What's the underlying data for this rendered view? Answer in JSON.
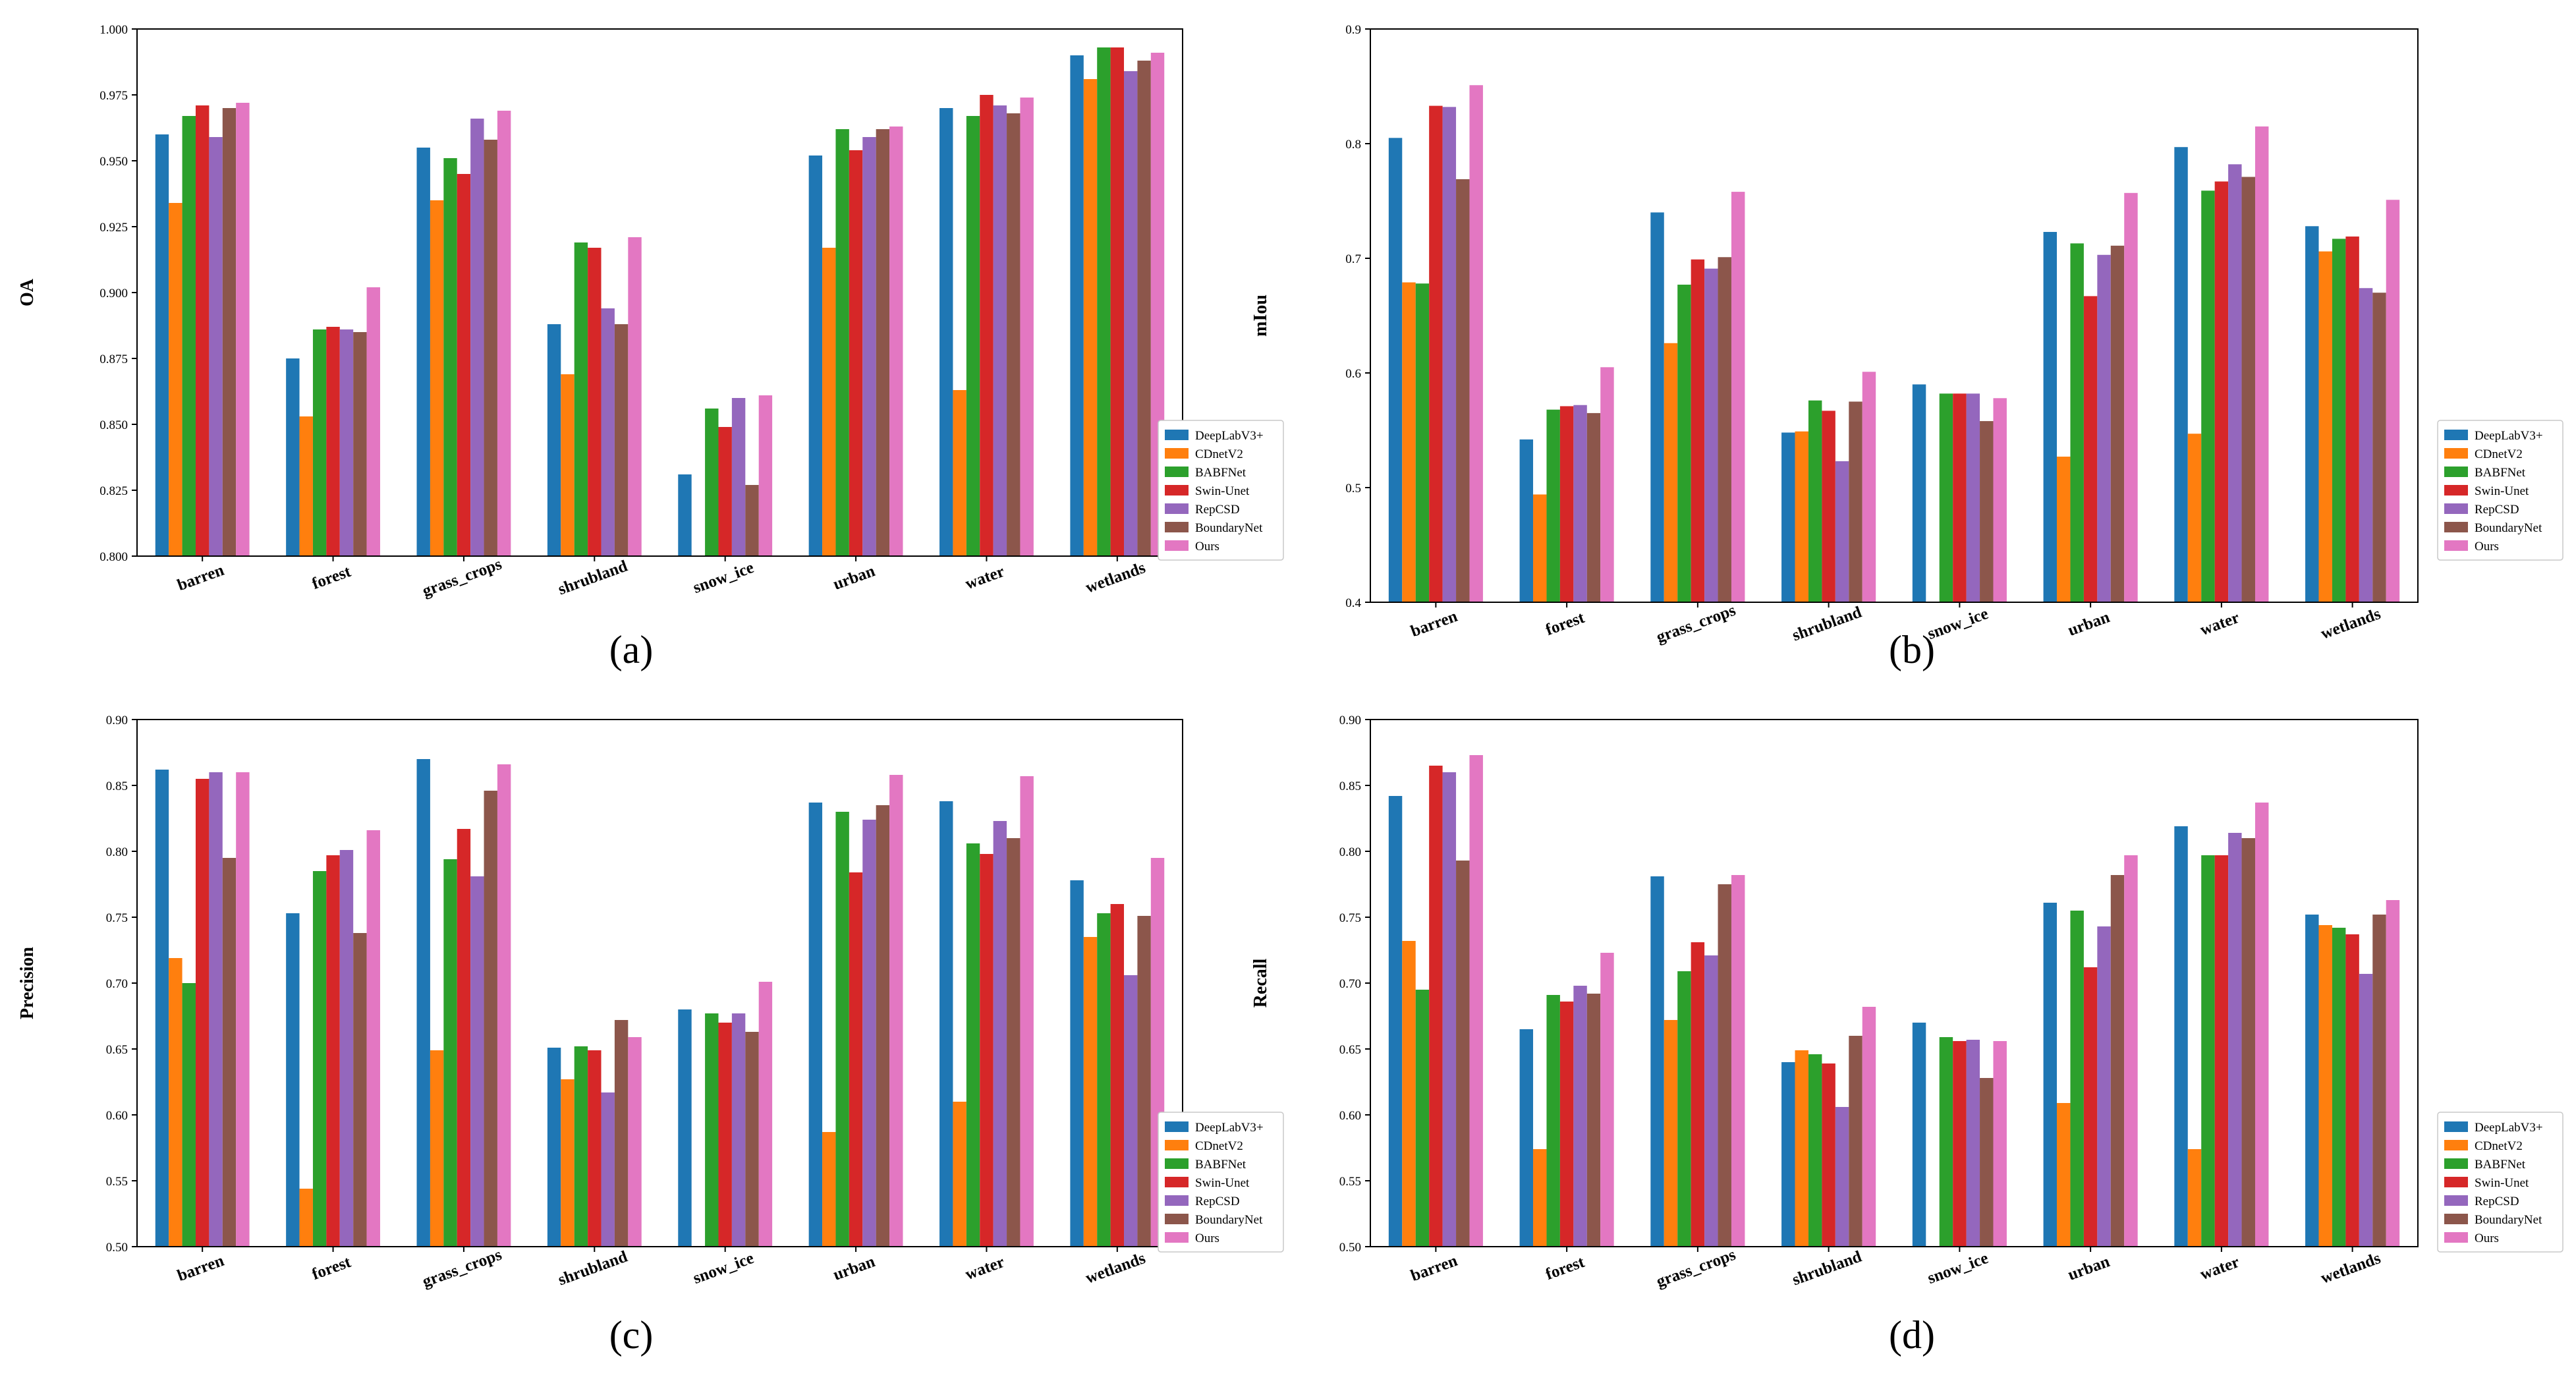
{
  "colors": {
    "DeepLabV3+": "#1f77b4",
    "CDnetV2": "#ff7f0e",
    "BABFNet": "#2ca02c",
    "Swin-Unet": "#d62728",
    "RepCSD": "#9467bd",
    "BoundaryNet": "#8c564b",
    "Ours": "#e377c2"
  },
  "chart_data": [
    {
      "id": "a",
      "type": "bar",
      "caption": "(a)",
      "title": "",
      "xlabel": "",
      "ylabel": "OA",
      "ylim": [
        0.8,
        1.0
      ],
      "yticks": [
        "0.800",
        "0.825",
        "0.850",
        "0.875",
        "0.900",
        "0.925",
        "0.950",
        "0.975",
        "1.000"
      ],
      "legend_position": "right",
      "categories": [
        "barren",
        "forest",
        "grass_crops",
        "shrubland",
        "snow_ice",
        "urban",
        "water",
        "wetlands"
      ],
      "series": [
        {
          "name": "DeepLabV3+",
          "values": [
            0.96,
            0.875,
            0.955,
            0.888,
            0.831,
            0.952,
            0.97,
            0.99
          ]
        },
        {
          "name": "CDnetV2",
          "values": [
            0.934,
            0.853,
            0.935,
            0.869,
            0.8,
            0.917,
            0.863,
            0.981
          ]
        },
        {
          "name": "BABFNet",
          "values": [
            0.967,
            0.886,
            0.951,
            0.919,
            0.856,
            0.962,
            0.967,
            0.993
          ]
        },
        {
          "name": "Swin-Unet",
          "values": [
            0.971,
            0.887,
            0.945,
            0.917,
            0.849,
            0.954,
            0.975,
            0.993
          ]
        },
        {
          "name": "RepCSD",
          "values": [
            0.959,
            0.886,
            0.966,
            0.894,
            0.86,
            0.959,
            0.971,
            0.984
          ]
        },
        {
          "name": "BoundaryNet",
          "values": [
            0.97,
            0.885,
            0.958,
            0.888,
            0.827,
            0.962,
            0.968,
            0.988
          ]
        },
        {
          "name": "Ours",
          "values": [
            0.972,
            0.902,
            0.969,
            0.921,
            0.861,
            0.963,
            0.974,
            0.991
          ]
        }
      ]
    },
    {
      "id": "b",
      "type": "bar",
      "caption": "(b)",
      "title": "",
      "xlabel": "",
      "ylabel": "mIou",
      "ylim": [
        0.4,
        0.9
      ],
      "yticks": [
        "0.4",
        "0.5",
        "0.6",
        "0.7",
        "0.8",
        "0.9"
      ],
      "legend_position": "right",
      "categories": [
        "barren",
        "forest",
        "grass_crops",
        "shrubland",
        "snow_ice",
        "urban",
        "water",
        "wetlands"
      ],
      "series": [
        {
          "name": "DeepLabV3+",
          "values": [
            0.805,
            0.542,
            0.74,
            0.548,
            0.59,
            0.723,
            0.797,
            0.728
          ]
        },
        {
          "name": "CDnetV2",
          "values": [
            0.679,
            0.494,
            0.626,
            0.549,
            0.4,
            0.527,
            0.547,
            0.706
          ]
        },
        {
          "name": "BABFNet",
          "values": [
            0.678,
            0.568,
            0.677,
            0.576,
            0.582,
            0.713,
            0.759,
            0.717
          ]
        },
        {
          "name": "Swin-Unet",
          "values": [
            0.833,
            0.571,
            0.699,
            0.567,
            0.582,
            0.667,
            0.767,
            0.719
          ]
        },
        {
          "name": "RepCSD",
          "values": [
            0.832,
            0.572,
            0.691,
            0.523,
            0.582,
            0.703,
            0.782,
            0.674
          ]
        },
        {
          "name": "BoundaryNet",
          "values": [
            0.769,
            0.565,
            0.701,
            0.575,
            0.558,
            0.711,
            0.771,
            0.67
          ]
        },
        {
          "name": "Ours",
          "values": [
            0.851,
            0.605,
            0.758,
            0.601,
            0.578,
            0.757,
            0.815,
            0.751
          ]
        }
      ]
    },
    {
      "id": "c",
      "type": "bar",
      "caption": "(c)",
      "title": "",
      "xlabel": "",
      "ylabel": "Precision",
      "ylim": [
        0.5,
        0.9
      ],
      "yticks": [
        "0.50",
        "0.55",
        "0.60",
        "0.65",
        "0.70",
        "0.75",
        "0.80",
        "0.85",
        "0.90"
      ],
      "legend_position": "right",
      "categories": [
        "barren",
        "forest",
        "grass_crops",
        "shrubland",
        "snow_ice",
        "urban",
        "water",
        "wetlands"
      ],
      "series": [
        {
          "name": "DeepLabV3+",
          "values": [
            0.862,
            0.753,
            0.87,
            0.651,
            0.68,
            0.837,
            0.838,
            0.778
          ]
        },
        {
          "name": "CDnetV2",
          "values": [
            0.719,
            0.544,
            0.649,
            0.627,
            0.5,
            0.587,
            0.61,
            0.735
          ]
        },
        {
          "name": "BABFNet",
          "values": [
            0.7,
            0.785,
            0.794,
            0.652,
            0.677,
            0.83,
            0.806,
            0.753
          ]
        },
        {
          "name": "Swin-Unet",
          "values": [
            0.855,
            0.797,
            0.817,
            0.649,
            0.67,
            0.784,
            0.798,
            0.76
          ]
        },
        {
          "name": "RepCSD",
          "values": [
            0.86,
            0.801,
            0.781,
            0.617,
            0.677,
            0.824,
            0.823,
            0.706
          ]
        },
        {
          "name": "BoundaryNet",
          "values": [
            0.795,
            0.738,
            0.846,
            0.672,
            0.663,
            0.835,
            0.81,
            0.751
          ]
        },
        {
          "name": "Ours",
          "values": [
            0.86,
            0.816,
            0.866,
            0.659,
            0.701,
            0.858,
            0.857,
            0.795
          ]
        }
      ]
    },
    {
      "id": "d",
      "type": "bar",
      "caption": "(d)",
      "title": "",
      "xlabel": "",
      "ylabel": "Recall",
      "ylim": [
        0.5,
        0.9
      ],
      "yticks": [
        "0.50",
        "0.55",
        "0.60",
        "0.65",
        "0.70",
        "0.75",
        "0.80",
        "0.85",
        "0.90"
      ],
      "legend_position": "right",
      "categories": [
        "barren",
        "forest",
        "grass_crops",
        "shrubland",
        "snow_ice",
        "urban",
        "water",
        "wetlands"
      ],
      "series": [
        {
          "name": "DeepLabV3+",
          "values": [
            0.842,
            0.665,
            0.781,
            0.64,
            0.67,
            0.761,
            0.819,
            0.752
          ]
        },
        {
          "name": "CDnetV2",
          "values": [
            0.732,
            0.574,
            0.672,
            0.649,
            0.5,
            0.609,
            0.574,
            0.744
          ]
        },
        {
          "name": "BABFNet",
          "values": [
            0.695,
            0.691,
            0.709,
            0.646,
            0.659,
            0.755,
            0.797,
            0.742
          ]
        },
        {
          "name": "Swin-Unet",
          "values": [
            0.865,
            0.686,
            0.731,
            0.639,
            0.656,
            0.712,
            0.797,
            0.737
          ]
        },
        {
          "name": "RepCSD",
          "values": [
            0.86,
            0.698,
            0.721,
            0.606,
            0.657,
            0.743,
            0.814,
            0.707
          ]
        },
        {
          "name": "BoundaryNet",
          "values": [
            0.793,
            0.692,
            0.775,
            0.66,
            0.628,
            0.782,
            0.81,
            0.752
          ]
        },
        {
          "name": "Ours",
          "values": [
            0.873,
            0.723,
            0.782,
            0.682,
            0.656,
            0.797,
            0.837,
            0.763
          ]
        }
      ]
    }
  ]
}
